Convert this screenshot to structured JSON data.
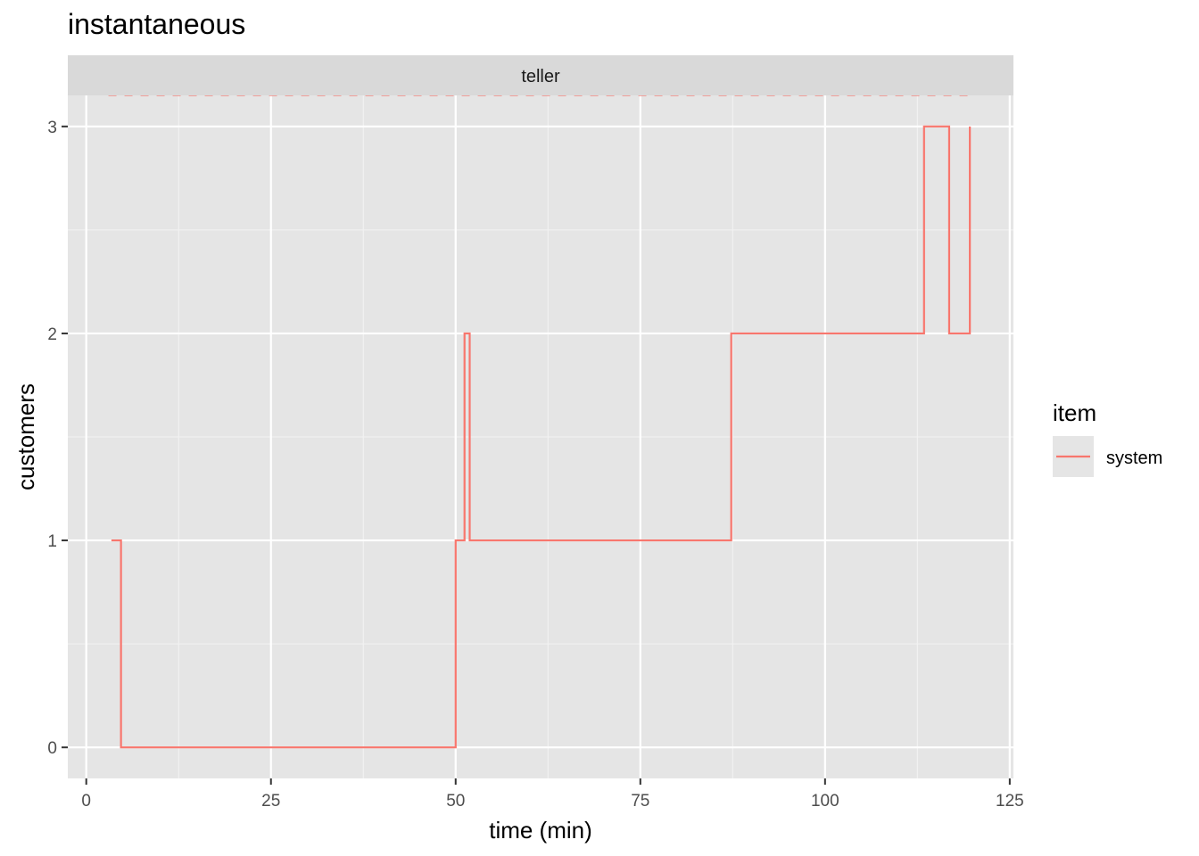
{
  "chart_data": {
    "type": "line",
    "title": "instantaneous",
    "facet": "teller",
    "xlabel": "time (min)",
    "ylabel": "customers",
    "xlim": [
      -2.5,
      125.5
    ],
    "ylim": [
      -0.15,
      3.15
    ],
    "x_ticks": [
      0,
      25,
      50,
      75,
      100,
      125
    ],
    "x_tick_labels": [
      "0",
      "25",
      "50",
      "75",
      "100",
      "125"
    ],
    "y_ticks": [
      0,
      1,
      2,
      3
    ],
    "y_tick_labels": [
      "0",
      "1",
      "2",
      "3"
    ],
    "grid": true,
    "legend": {
      "title": "item",
      "position": "right"
    },
    "series": [
      {
        "name": "system",
        "color": "#F8766D",
        "step": "hv",
        "points": [
          [
            3.4,
            1
          ],
          [
            4.7,
            0
          ],
          [
            50.0,
            1
          ],
          [
            51.2,
            2
          ],
          [
            51.9,
            1
          ],
          [
            87.3,
            2
          ],
          [
            113.4,
            3
          ],
          [
            116.8,
            2
          ],
          [
            119.6,
            3
          ]
        ]
      }
    ],
    "limit_line": {
      "color": "#F8766D",
      "style": "dashed",
      "x": [
        3.0,
        119.6
      ],
      "y": 3.15
    }
  }
}
